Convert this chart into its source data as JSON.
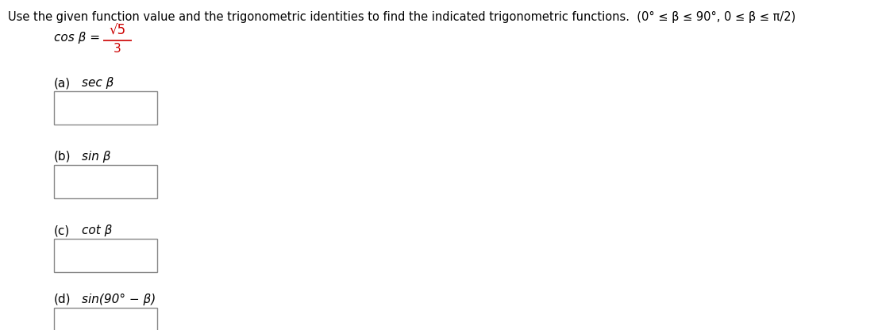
{
  "title_text": "Use the given function value and the trigonometric identities to find the indicated trigonometric functions.  (0° ≤ β ≤ 90°, 0 ≤ β ≤ π/2)",
  "cos_label": "cos β = ",
  "numerator": "√5",
  "denominator": "3",
  "fraction_color": "#cc0000",
  "parts": [
    {
      "label": "(a)",
      "func": "sec β"
    },
    {
      "label": "(b)",
      "func": "sin β"
    },
    {
      "label": "(c)",
      "func": "cot β"
    },
    {
      "label": "(d)",
      "func": "sin(90° − β)"
    }
  ],
  "background_color": "#ffffff",
  "text_color": "#000000",
  "title_fontsize": 10.5,
  "body_fontsize": 11,
  "font_family": "DejaVu Sans"
}
